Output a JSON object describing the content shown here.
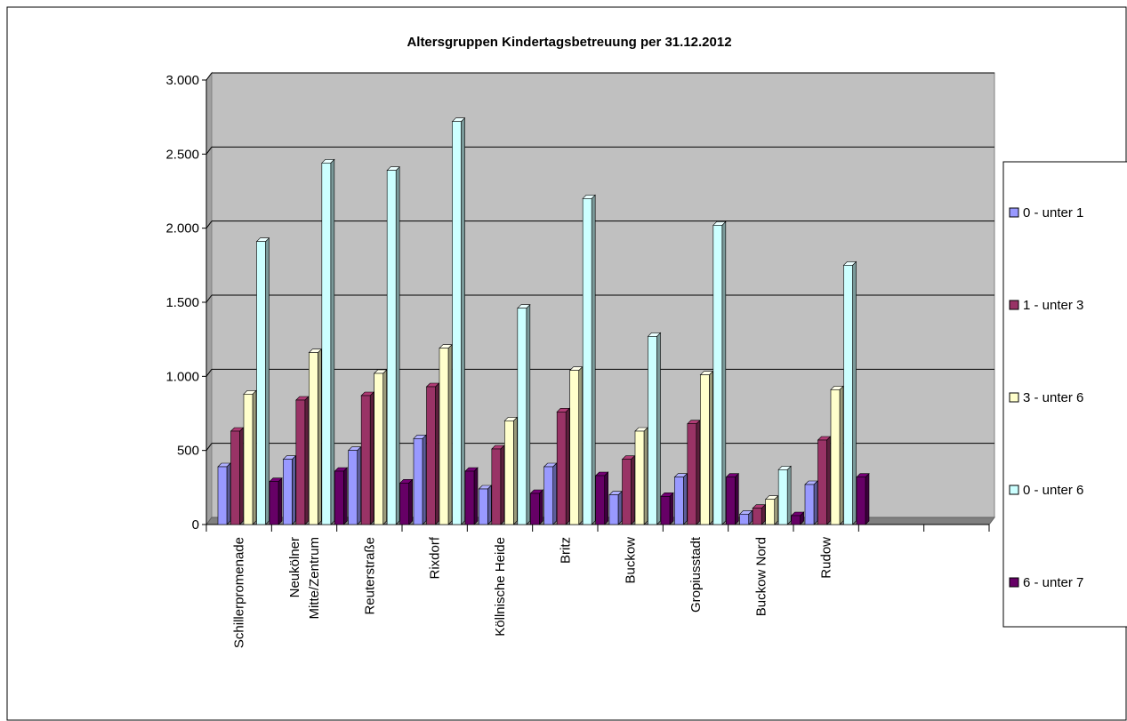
{
  "chart_data": {
    "type": "bar3d",
    "title": "Altersgruppen Kindertagsbetreuung per 31.12.2012",
    "categories": [
      "Schillerpromenade",
      "Neukölner\nMitte/Zentrum",
      "Reuterstraße",
      "Rixdorf",
      "Köllnische Heide",
      "Britz",
      "Buckow",
      "Gropiusstadt",
      "Buckow Nord",
      "Rudow",
      null,
      null
    ],
    "series": [
      {
        "name": "0 - unter 1",
        "color": "#9999ff",
        "values": [
          390,
          440,
          500,
          580,
          240,
          390,
          200,
          320,
          70,
          270,
          null,
          null
        ]
      },
      {
        "name": "1 - unter 3",
        "color": "#993366",
        "values": [
          630,
          840,
          870,
          930,
          510,
          760,
          440,
          680,
          110,
          570,
          null,
          null
        ]
      },
      {
        "name": "3 - unter 6",
        "color": "#ffffcc",
        "values": [
          880,
          1160,
          1020,
          1190,
          700,
          1040,
          630,
          1010,
          170,
          910,
          null,
          null
        ]
      },
      {
        "name": "0 - unter 6",
        "color": "#ccffff",
        "values": [
          1910,
          2440,
          2390,
          2720,
          1460,
          2200,
          1270,
          2020,
          370,
          1750,
          null,
          null
        ]
      },
      {
        "name": "6 - unter 7",
        "color": "#660066",
        "values": [
          290,
          360,
          280,
          360,
          210,
          330,
          190,
          320,
          60,
          320,
          null,
          null
        ]
      }
    ],
    "ylim": [
      0,
      3000
    ],
    "yticks": [
      0,
      500,
      {
        "value": 1000,
        "label": "1.000"
      },
      {
        "value": 1500,
        "label": "1.500"
      },
      {
        "value": 2000,
        "label": "2.000"
      },
      {
        "value": 2500,
        "label": "2.500"
      },
      {
        "value": 3000,
        "label": "3.000"
      }
    ],
    "grid": true,
    "legend": "right"
  }
}
